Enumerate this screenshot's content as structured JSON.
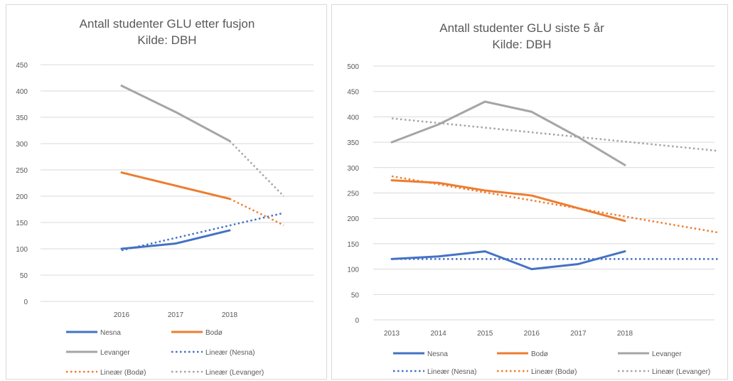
{
  "colors": {
    "nesna": "#4472c4",
    "bodo": "#ed7d31",
    "levanger": "#a5a5a5",
    "grid": "#d9d9d9",
    "text": "#595959"
  },
  "chart_data": [
    {
      "type": "line",
      "title": "Antall studenter GLU etter fusjon",
      "subtitle": "Kilde: DBH",
      "categories": [
        "2016",
        "2017",
        "2018"
      ],
      "ylim": [
        0,
        450
      ],
      "yticks": [
        0,
        50,
        100,
        150,
        200,
        250,
        300,
        350,
        400,
        450
      ],
      "grid": true,
      "legend_position": "bottom",
      "series": [
        {
          "name": "Nesna",
          "color": "#4472c4",
          "style": "solid",
          "values": [
            100,
            110,
            135
          ]
        },
        {
          "name": "Bodø",
          "color": "#ed7d31",
          "style": "solid",
          "values": [
            245,
            220,
            195
          ]
        },
        {
          "name": "Levanger",
          "color": "#a5a5a5",
          "style": "solid",
          "values": [
            410,
            360,
            305
          ]
        }
      ],
      "trendlines": [
        {
          "name": "Lineær (Nesna)",
          "color": "#4472c4",
          "style": "dotted",
          "start": [
            1,
            97
          ],
          "end": [
            4,
            168
          ]
        },
        {
          "name": "Lineær (Bodø)",
          "color": "#ed7d31",
          "style": "dotted",
          "start": [
            3,
            195
          ],
          "end": [
            4,
            145
          ]
        },
        {
          "name": "Lineær (Levanger)",
          "color": "#a5a5a5",
          "style": "dotted",
          "start": [
            3,
            305
          ],
          "end": [
            4,
            200
          ]
        }
      ],
      "legend": [
        "Nesna",
        "Bodø",
        "Levanger",
        "Lineær (Nesna)",
        "Lineær (Bodø)",
        "Lineær (Levanger)"
      ]
    },
    {
      "type": "line",
      "title": "Antall studenter GLU siste 5 år",
      "subtitle": "Kilde: DBH",
      "categories": [
        "2013",
        "2014",
        "2015",
        "2016",
        "2017",
        "2018"
      ],
      "ylim": [
        0,
        500
      ],
      "yticks": [
        0,
        50,
        100,
        150,
        200,
        250,
        300,
        350,
        400,
        450,
        500
      ],
      "grid": true,
      "legend_position": "bottom",
      "series": [
        {
          "name": "Nesna",
          "color": "#4472c4",
          "style": "solid",
          "values": [
            120,
            125,
            135,
            100,
            110,
            135
          ]
        },
        {
          "name": "Bodø",
          "color": "#ed7d31",
          "style": "solid",
          "values": [
            275,
            270,
            255,
            245,
            220,
            195
          ]
        },
        {
          "name": "Levanger",
          "color": "#a5a5a5",
          "style": "solid",
          "values": [
            350,
            385,
            430,
            410,
            360,
            305
          ]
        }
      ],
      "trendlines": [
        {
          "name": "Lineær (Nesna)",
          "color": "#4472c4",
          "style": "dotted",
          "start": [
            1,
            120
          ],
          "end": [
            8,
            120
          ]
        },
        {
          "name": "Lineær (Bodø)",
          "color": "#ed7d31",
          "style": "dotted",
          "start": [
            1,
            283
          ],
          "end": [
            8,
            172
          ]
        },
        {
          "name": "Lineær (Levanger)",
          "color": "#a5a5a5",
          "style": "dotted",
          "start": [
            1,
            397
          ],
          "end": [
            8,
            333
          ]
        }
      ],
      "legend": [
        "Nesna",
        "Bodø",
        "Levanger",
        "Lineær (Nesna)",
        "Lineær (Bodø)",
        "Lineær (Levanger)"
      ]
    }
  ]
}
